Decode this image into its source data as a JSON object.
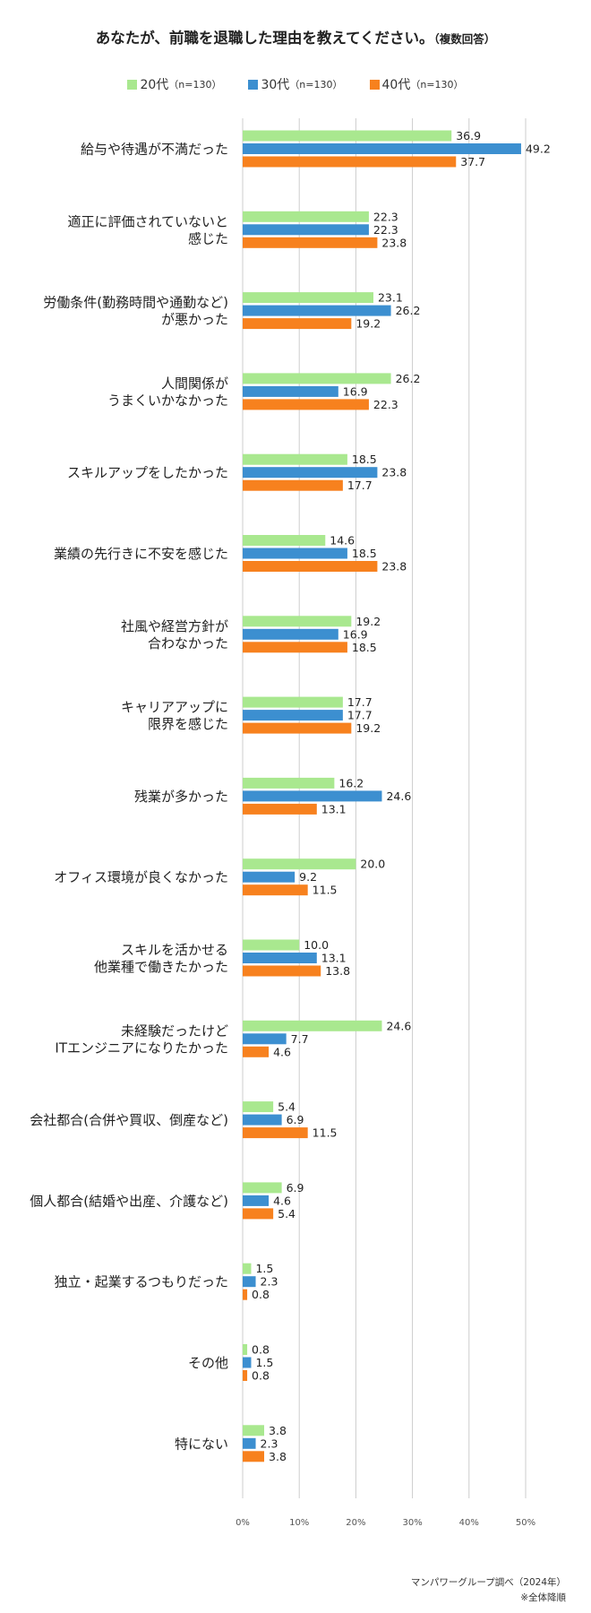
{
  "chart_data": {
    "type": "bar",
    "orientation": "horizontal",
    "title": "あなたが、前職を退職した理由を教えてください。",
    "title_note": "（複数回答）",
    "legend": {
      "position": "top",
      "items": [
        {
          "name": "20代",
          "n": "（n=130）"
        },
        {
          "name": "30代",
          "n": "（n=130）"
        },
        {
          "name": "40代",
          "n": "（n=130）"
        }
      ]
    },
    "categories": [
      [
        "給与や待遇が不満だった"
      ],
      [
        "適正に評価されていないと",
        "感じた"
      ],
      [
        "労働条件(勤務時間や通勤など)",
        "が悪かった"
      ],
      [
        "人間関係が",
        "うまくいかなかった"
      ],
      [
        "スキルアップをしたかった"
      ],
      [
        "業績の先行きに不安を感じた"
      ],
      [
        "社風や経営方針が",
        "合わなかった"
      ],
      [
        "キャリアアップに",
        "限界を感じた"
      ],
      [
        "残業が多かった"
      ],
      [
        "オフィス環境が良くなかった"
      ],
      [
        "スキルを活かせる",
        "他業種で働きたかった"
      ],
      [
        "未経験だったけど",
        "ITエンジニアになりたかった"
      ],
      [
        "会社都合(合併や買収、倒産など)"
      ],
      [
        "個人都合(結婚や出産、介護など)"
      ],
      [
        "独立・起業するつもりだった"
      ],
      [
        "その他"
      ],
      [
        "特にない"
      ]
    ],
    "series": [
      {
        "name": "20代",
        "color": "#a9e88f",
        "values": [
          36.9,
          22.3,
          23.1,
          26.2,
          18.5,
          14.6,
          19.2,
          17.7,
          16.2,
          20.0,
          10.0,
          24.6,
          5.4,
          6.9,
          1.5,
          0.8,
          3.8
        ]
      },
      {
        "name": "30代",
        "color": "#3c8fd0",
        "values": [
          49.2,
          22.3,
          26.2,
          16.9,
          23.8,
          18.5,
          16.9,
          17.7,
          24.6,
          9.2,
          13.1,
          7.7,
          6.9,
          4.6,
          2.3,
          1.5,
          2.3
        ]
      },
      {
        "name": "40代",
        "color": "#f7811e",
        "values": [
          37.7,
          23.8,
          19.2,
          22.3,
          17.7,
          23.8,
          18.5,
          19.2,
          13.1,
          11.5,
          13.8,
          4.6,
          11.5,
          5.4,
          0.8,
          0.8,
          3.8
        ]
      }
    ],
    "xlim": [
      0,
      50
    ],
    "xticks": [
      0,
      10,
      20,
      30,
      40,
      50
    ],
    "tick_suffix": "%",
    "grid": true,
    "value_decimals": 1
  },
  "footer": {
    "source": "マンパワーグループ調べ（2024年）",
    "note": "※全体降順"
  }
}
